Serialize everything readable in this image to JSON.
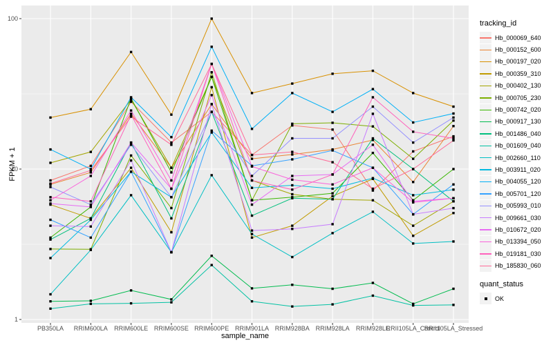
{
  "figure": {
    "background": "#FFFFFF",
    "panel_background": "#EBEBEB",
    "gridline_color": "#FFFFFF",
    "tick_label_color": "#4D4D4D",
    "tick_mark_color": "#333333",
    "point_color": "#000000"
  },
  "chart_data": {
    "type": "line",
    "title": "",
    "xlabel": "sample_name",
    "ylabel": "FPKM + 1",
    "y_scale": "log10",
    "y_ticks": [
      1,
      10,
      100
    ],
    "y_minor_ticks": [
      3.1623,
      31.623
    ],
    "ylim": [
      0.95,
      120
    ],
    "grid": "major-and-minor-white-on-grey",
    "legend_position": "right",
    "point_marker": "filled-black-square",
    "x_categories": [
      "PB350LA",
      "RRIM600LA",
      "RRIM600LE",
      "RRIM600SE",
      "RRIM600PE",
      "RRIM901LA",
      "RRIM928BA",
      "RRIM928LA",
      "RRIM928LE",
      "RRII105LA_Control",
      "RRII105LA_Stressed"
    ],
    "series": [
      {
        "name": "Hb_000069_640",
        "color": "#F8766D",
        "values": [
          8.4,
          10.5,
          28,
          15,
          24,
          12.4,
          19.5,
          18.3,
          7.2,
          13.1,
          16.5
        ]
      },
      {
        "name": "Hb_000152_600",
        "color": "#EA8331",
        "values": [
          7.9,
          9.5,
          23.3,
          10.2,
          27,
          11.7,
          12.5,
          13.5,
          15.6,
          8.2,
          19.3
        ]
      },
      {
        "name": "Hb_000197_020",
        "color": "#D89000",
        "values": [
          22,
          25,
          60,
          23,
          100,
          32,
          37,
          43,
          45,
          32,
          26
        ]
      },
      {
        "name": "Hb_000359_310",
        "color": "#C09B00",
        "values": [
          5.8,
          4.7,
          10.2,
          3.8,
          35,
          3.5,
          4.2,
          6.6,
          8.6,
          3.6,
          5.1
        ]
      },
      {
        "name": "Hb_000402_130",
        "color": "#A3A500",
        "values": [
          11,
          13,
          29,
          10.2,
          41,
          8.4,
          6.8,
          6.3,
          6.2,
          4.2,
          6.1
        ]
      },
      {
        "name": "Hb_000705_230",
        "color": "#7CAE00",
        "values": [
          2.94,
          2.93,
          12.3,
          5.5,
          44,
          6.2,
          20,
          20.3,
          19.2,
          11.7,
          21
        ]
      },
      {
        "name": "Hb_000742_020",
        "color": "#39B600",
        "values": [
          3.5,
          5.6,
          29.5,
          9.5,
          41,
          6.2,
          6.5,
          6.9,
          12.8,
          6.2,
          10
        ]
      },
      {
        "name": "Hb_000917_130",
        "color": "#00BB4E",
        "values": [
          1.32,
          1.33,
          1.56,
          1.36,
          2.65,
          1.61,
          1.7,
          1.6,
          1.75,
          1.27,
          1.6
        ]
      },
      {
        "name": "Hb_001486_040",
        "color": "#00BF7D",
        "values": [
          3.4,
          4.7,
          15,
          4.7,
          24,
          4.9,
          6.4,
          6.3,
          16,
          10,
          6.1
        ]
      },
      {
        "name": "Hb_001609_040",
        "color": "#00C1A3",
        "values": [
          1.18,
          1.27,
          1.28,
          1.3,
          2.3,
          1.32,
          1.22,
          1.26,
          1.44,
          1.24,
          1.25
        ]
      },
      {
        "name": "Hb_002660_110",
        "color": "#00BFC4",
        "values": [
          1.47,
          2.9,
          6.7,
          2.8,
          9.1,
          3.7,
          2.6,
          3.75,
          5.2,
          3.2,
          3.3
        ]
      },
      {
        "name": "Hb_003911_020",
        "color": "#00BAE0",
        "values": [
          2.56,
          4.6,
          9.6,
          6.5,
          17.5,
          7.5,
          7.8,
          7.4,
          8.7,
          6.7,
          7.3
        ]
      },
      {
        "name": "Hb_004055_120",
        "color": "#00B0F6",
        "values": [
          13.5,
          10,
          30,
          16.3,
          65,
          18.5,
          32,
          24,
          34,
          20.4,
          23.4
        ]
      },
      {
        "name": "Hb_005701_120",
        "color": "#35A2FF",
        "values": [
          4.6,
          3.5,
          9.6,
          2.8,
          18,
          10.5,
          11.6,
          13.3,
          10.2,
          5.0,
          7.9
        ]
      },
      {
        "name": "Hb_005993_010",
        "color": "#9590FF",
        "values": [
          7.6,
          5.8,
          14.5,
          6.5,
          24,
          9.0,
          16,
          16,
          26,
          15,
          22
        ]
      },
      {
        "name": "Hb_009661_030",
        "color": "#C77CFF",
        "values": [
          4.2,
          4.15,
          11.4,
          2.8,
          27,
          3.9,
          4.0,
          4.3,
          23.3,
          5.0,
          5.5
        ]
      },
      {
        "name": "Hb_010672_020",
        "color": "#E76BF3",
        "values": [
          5.9,
          5.6,
          15,
          7.4,
          31,
          5.8,
          9.0,
          9.2,
          14.5,
          6.1,
          6.4
        ]
      },
      {
        "name": "Hb_013394_050",
        "color": "#FA62DB",
        "values": [
          6.2,
          9.0,
          24.5,
          8.4,
          50,
          10.4,
          8.5,
          7.9,
          10.2,
          6.0,
          6.4
        ]
      },
      {
        "name": "Hb_019181_030",
        "color": "#FF62BC",
        "values": [
          6.5,
          6.1,
          23,
          7.4,
          50,
          8.4,
          7.3,
          9.2,
          30,
          17.7,
          16
        ]
      },
      {
        "name": "Hb_185830_060",
        "color": "#FF6A98",
        "values": [
          8.0,
          9.8,
          22.3,
          14.5,
          50,
          12.4,
          13,
          11.1,
          7.4,
          10,
          15.5
        ]
      }
    ],
    "legend": {
      "color_legend_title": "tracking_id",
      "shape_legend_title": "quant_status",
      "shape_legend_items": [
        {
          "label": "OK",
          "marker": "black-square"
        }
      ]
    }
  }
}
